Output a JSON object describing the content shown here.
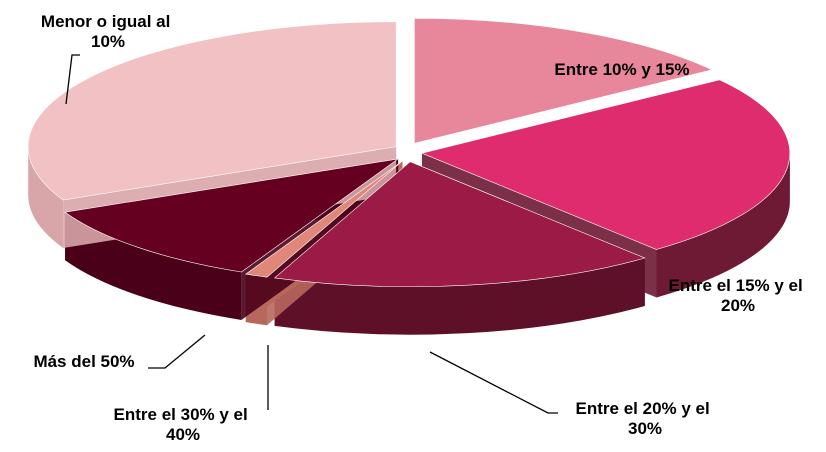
{
  "chart_data": {
    "type": "pie",
    "title": "",
    "slices": [
      {
        "label_lines": [
          "Entre 10% y 15%"
        ],
        "value": 15,
        "color": "#E8879B",
        "side": "#B56678"
      },
      {
        "label_lines": [
          "Entre el 15% y el",
          "20%"
        ],
        "value": 24,
        "color": "#DE2C6E",
        "side": "#6E1A34"
      },
      {
        "label_lines": [
          "Entre el 20% y el",
          "30%"
        ],
        "value": 17,
        "color": "#9C1A46",
        "side": "#5E1029"
      },
      {
        "label_lines": [
          "Entre el 30% y el",
          "40%"
        ],
        "value": 1,
        "color": "#E0877A",
        "side": "#B8675C"
      },
      {
        "label_lines": [
          "Más del 50%"
        ],
        "value": 11,
        "color": "#650021",
        "side": "#4A0018"
      },
      {
        "label_lines": [
          "Menor o igual al",
          "10%"
        ],
        "value": 32,
        "color": "#F2C1C4",
        "side": "#D8A5A8"
      }
    ]
  }
}
